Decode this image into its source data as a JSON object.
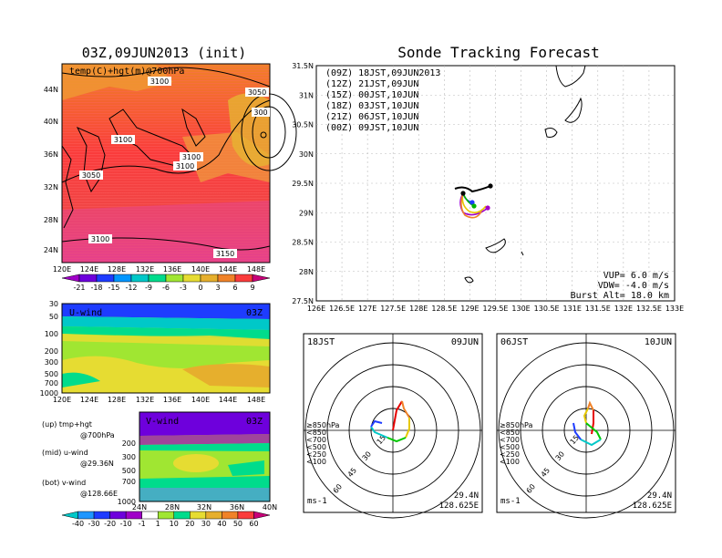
{
  "left": {
    "title": "03Z,09JUN2013 (init)",
    "map_label": "temp(C)+hgt(m)@700hPa",
    "lat_ticks": [
      "44N",
      "40N",
      "36N",
      "32N",
      "28N",
      "24N"
    ],
    "lon_ticks": [
      "120E",
      "124E",
      "128E",
      "132E",
      "136E",
      "140E",
      "144E",
      "148E"
    ],
    "contour_labels": [
      "3100",
      "3050",
      "300",
      "3100",
      "3100",
      "3100",
      "3050",
      "3100",
      "3150"
    ],
    "temp_colorbar": {
      "labels": [
        "-21",
        "-18",
        "-15",
        "-12",
        "-9",
        "-6",
        "-3",
        "0",
        "3",
        "6",
        "9"
      ],
      "colors": [
        "#a000c8",
        "#6e00dc",
        "#1e3cff",
        "#0096ff",
        "#00c8c8",
        "#00dc8c",
        "#a0e632",
        "#e6dc32",
        "#e6af2d",
        "#f08228",
        "#fa3c3c",
        "#c80078"
      ]
    },
    "u_wind": {
      "label": "U-wind",
      "time": "03Z",
      "levels": [
        "30",
        "50",
        "100",
        "200",
        "300",
        "500",
        "700",
        "1000"
      ]
    },
    "v_wind": {
      "label": "V-wind",
      "time": "03Z",
      "levels": [
        "200",
        "300",
        "500",
        "700",
        "1000"
      ],
      "lat_ticks": [
        "24N",
        "28N",
        "32N",
        "36N",
        "40N"
      ]
    },
    "legend_text": [
      {
        "a": "(up) tmp+hgt",
        "b": "@700hPa"
      },
      {
        "a": "(mid) u-wind",
        "b": "@29.36N"
      },
      {
        "a": "(bot) v-wind",
        "b": "@128.66E"
      }
    ],
    "wind_colorbar": {
      "labels": [
        "-40",
        "-30",
        "-20",
        "-10",
        "-1",
        "1",
        "10",
        "20",
        "30",
        "40",
        "50",
        "60"
      ],
      "colors": [
        "#00c8c8",
        "#1e96ff",
        "#1e3cff",
        "#6e00dc",
        "#a000c8",
        "#ffffff",
        "#a0e632",
        "#00dc8c",
        "#e6dc32",
        "#e6af2d",
        "#f08228",
        "#fa3c3c",
        "#c80078"
      ]
    }
  },
  "right": {
    "title": "Sonde Tracking Forecast",
    "lat_ticks": [
      "31.5N",
      "31N",
      "30.5N",
      "30N",
      "29.5N",
      "29N",
      "28.5N",
      "28N",
      "27.5N"
    ],
    "lon_ticks": [
      "126E",
      "126.5E",
      "127E",
      "127.5E",
      "128E",
      "128.5E",
      "129E",
      "129.5E",
      "130E",
      "130.5E",
      "131E",
      "131.5E",
      "132E",
      "132.5E",
      "133E"
    ],
    "legend": [
      {
        "text": "(09Z)  18JST,09JUN2013",
        "color": "#000000"
      },
      {
        "text": "(12Z)  21JST,09JUN",
        "color": "#a000c8"
      },
      {
        "text": "(15Z)  00JST,10JUN",
        "color": "#1e3cff"
      },
      {
        "text": "(18Z)  03JST,10JUN",
        "color": "#00b400"
      },
      {
        "text": "(21Z)  06JST,10JUN",
        "color": "#e6c800"
      },
      {
        "text": "(00Z)  09JST,10JUN",
        "color": "#f08228"
      }
    ],
    "info": [
      "VUP=  6.0  m/s",
      "VDW= -4.0  m/s",
      "Burst Alt=  18.0  km"
    ]
  },
  "polar": [
    {
      "time": "18JST",
      "date": "09JUN",
      "lat": "29.4N",
      "lon": "128.625E",
      "units": "ms-1",
      "rings": [
        "15",
        "30",
        "45",
        "60"
      ]
    },
    {
      "time": "06JST",
      "date": "10JUN",
      "lat": "29.4N",
      "lon": "128.625E",
      "units": "ms-1",
      "rings": [
        "15",
        "30",
        "45",
        "60"
      ]
    }
  ],
  "polar_legend": [
    {
      "text": "≥850hPa",
      "color": "#e60000"
    },
    {
      "text": "<850",
      "color": "#f08228"
    },
    {
      "text": "<700",
      "color": "#e6c800"
    },
    {
      "text": "<500",
      "color": "#00c800"
    },
    {
      "text": "<250",
      "color": "#00c8c8"
    },
    {
      "text": "<100",
      "color": "#1e3cff"
    }
  ]
}
